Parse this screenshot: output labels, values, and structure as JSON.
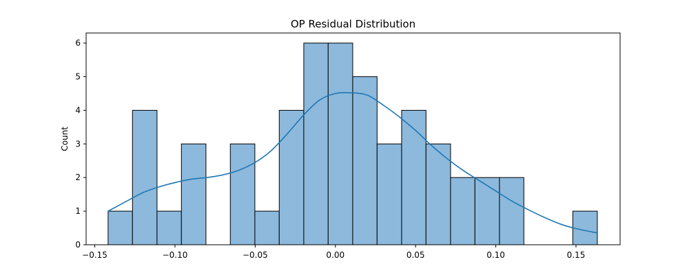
{
  "chart_data": {
    "type": "bar",
    "subtype": "histogram-with-kde",
    "title": "OP Residual Distribution",
    "xlabel": "",
    "ylabel": "Count",
    "xlim": [
      -0.1554,
      0.1775
    ],
    "ylim": [
      0,
      6.3
    ],
    "grid": false,
    "legend": "none",
    "colors": {
      "bar_fill": "#8cb9dc",
      "bar_edge": "#000000",
      "kde_line": "#1f77b4"
    },
    "x_ticks": [
      -0.15,
      -0.1,
      -0.05,
      0.0,
      0.05,
      0.1,
      0.15
    ],
    "x_tick_labels": [
      "−0.15",
      "−0.10",
      "−0.05",
      "0.00",
      "0.05",
      "0.10",
      "0.15"
    ],
    "y_ticks": [
      0,
      1,
      2,
      3,
      4,
      5,
      6
    ],
    "y_tick_labels": [
      "0",
      "1",
      "2",
      "3",
      "4",
      "5",
      "6"
    ],
    "bins": [
      {
        "start": -0.1417,
        "end": -0.1265,
        "count": 1
      },
      {
        "start": -0.1265,
        "end": -0.1112,
        "count": 4
      },
      {
        "start": -0.1112,
        "end": -0.096,
        "count": 1
      },
      {
        "start": -0.096,
        "end": -0.0807,
        "count": 3
      },
      {
        "start": -0.0807,
        "end": -0.0655,
        "count": 0
      },
      {
        "start": -0.0655,
        "end": -0.0502,
        "count": 3
      },
      {
        "start": -0.0502,
        "end": -0.035,
        "count": 1
      },
      {
        "start": -0.035,
        "end": -0.0197,
        "count": 4
      },
      {
        "start": -0.0197,
        "end": -0.0045,
        "count": 6
      },
      {
        "start": -0.0045,
        "end": 0.0108,
        "count": 6
      },
      {
        "start": 0.0108,
        "end": 0.026,
        "count": 5
      },
      {
        "start": 0.026,
        "end": 0.0413,
        "count": 3
      },
      {
        "start": 0.0413,
        "end": 0.0565,
        "count": 4
      },
      {
        "start": 0.0565,
        "end": 0.0718,
        "count": 3
      },
      {
        "start": 0.0718,
        "end": 0.087,
        "count": 2
      },
      {
        "start": 0.087,
        "end": 0.1023,
        "count": 2
      },
      {
        "start": 0.1023,
        "end": 0.1175,
        "count": 2
      },
      {
        "start": 0.1175,
        "end": 0.1328,
        "count": 0
      },
      {
        "start": 0.1328,
        "end": 0.148,
        "count": 0
      },
      {
        "start": 0.148,
        "end": 0.1633,
        "count": 1
      }
    ],
    "kde": {
      "x": [
        -0.1417,
        -0.13,
        -0.12,
        -0.11,
        -0.1,
        -0.09,
        -0.08,
        -0.07,
        -0.06,
        -0.05,
        -0.04,
        -0.03,
        -0.02,
        -0.01,
        0.0,
        0.01,
        0.02,
        0.03,
        0.04,
        0.05,
        0.06,
        0.07,
        0.08,
        0.09,
        0.1,
        0.11,
        0.12,
        0.13,
        0.14,
        0.15,
        0.1633
      ],
      "y": [
        1.0,
        1.3,
        1.55,
        1.72,
        1.85,
        1.95,
        2.0,
        2.08,
        2.22,
        2.45,
        2.8,
        3.3,
        3.85,
        4.3,
        4.5,
        4.52,
        4.45,
        4.15,
        3.8,
        3.4,
        2.95,
        2.55,
        2.2,
        1.9,
        1.6,
        1.3,
        1.05,
        0.82,
        0.62,
        0.48,
        0.35
      ]
    }
  }
}
